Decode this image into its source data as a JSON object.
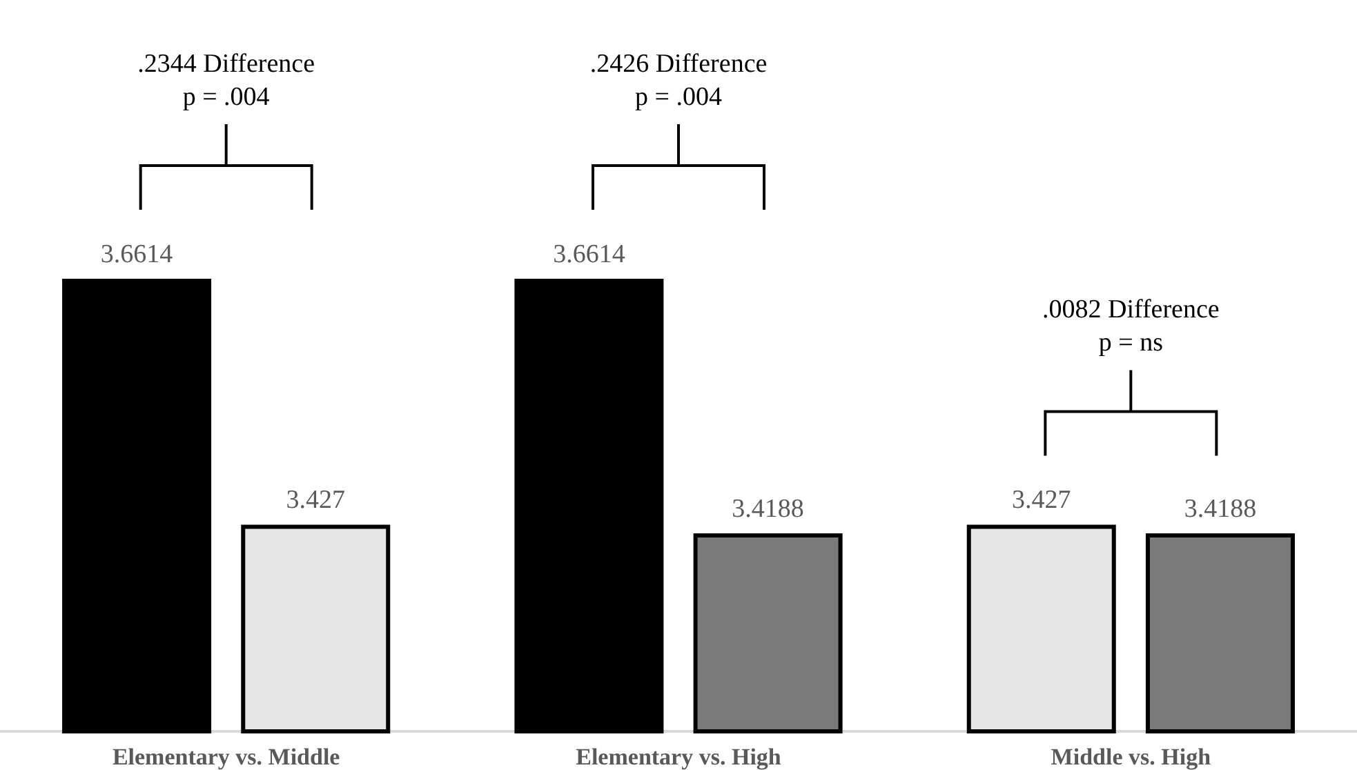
{
  "chart_data": {
    "type": "bar",
    "categories": [
      "Elementary vs. Middle",
      "Elementary vs. High",
      "Middle vs. High"
    ],
    "series": [
      {
        "values": [
          3.6614,
          3.6614,
          3.427
        ],
        "colors": [
          "#000000",
          "#000000",
          "#e6e6e6"
        ]
      },
      {
        "values": [
          3.427,
          3.4188,
          3.4188
        ],
        "colors": [
          "#e6e6e6",
          "#7a7a7a",
          "#7a7a7a"
        ]
      }
    ],
    "ylim": [
      3.23,
      3.6614
    ],
    "data_labels": true,
    "annotations": [
      ".2344 Difference\np = .004",
      ".2426 Difference\np = .004",
      ".0082 Difference\np = ns"
    ]
  }
}
